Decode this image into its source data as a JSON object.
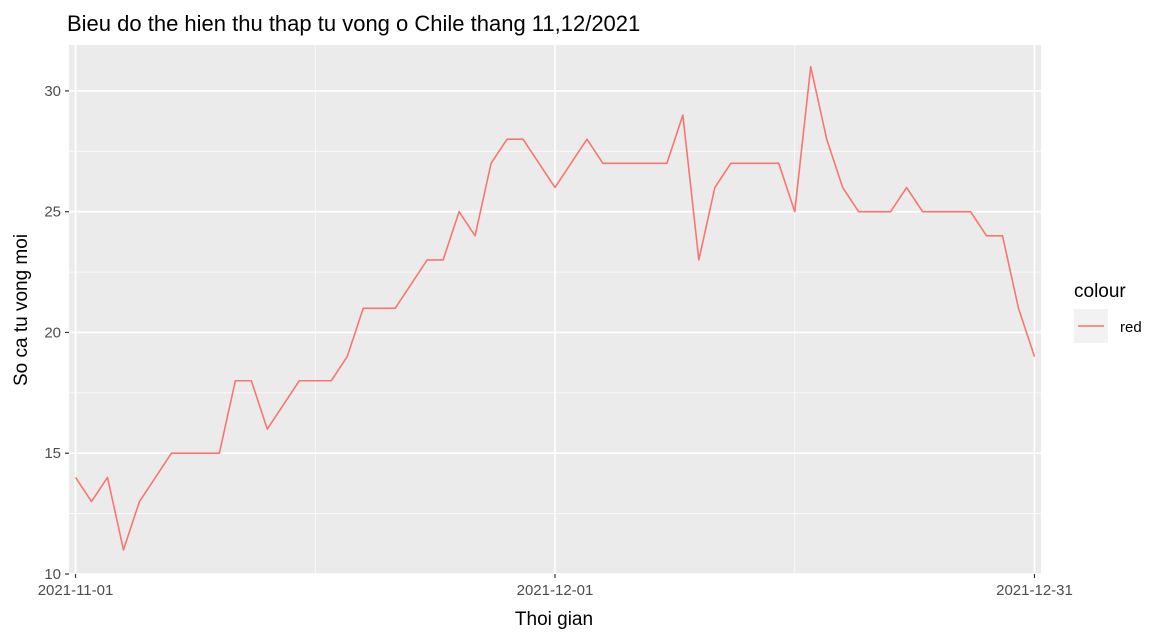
{
  "chart_data": {
    "type": "line",
    "title": "Bieu do the hien thu thap tu vong o Chile thang 11,12/2021",
    "xlabel": "Thoi gian",
    "ylabel": "So ca tu vong moi",
    "x_ticks": [
      "2021-11-01",
      "2021-12-01",
      "2021-12-31"
    ],
    "y_ticks": [
      10,
      15,
      20,
      25,
      30
    ],
    "xlim": [
      "2021-11-01",
      "2021-12-31"
    ],
    "ylim": [
      10,
      31.9
    ],
    "grid": true,
    "legend": {
      "title": "colour",
      "position": "right",
      "entries": [
        "red"
      ]
    },
    "series": [
      {
        "name": "red",
        "color": "#F8766D",
        "x": [
          "2021-11-01",
          "2021-11-02",
          "2021-11-03",
          "2021-11-04",
          "2021-11-05",
          "2021-11-06",
          "2021-11-07",
          "2021-11-08",
          "2021-11-09",
          "2021-11-10",
          "2021-11-11",
          "2021-11-12",
          "2021-11-13",
          "2021-11-14",
          "2021-11-15",
          "2021-11-16",
          "2021-11-17",
          "2021-11-18",
          "2021-11-19",
          "2021-11-20",
          "2021-11-21",
          "2021-11-22",
          "2021-11-23",
          "2021-11-24",
          "2021-11-25",
          "2021-11-26",
          "2021-11-27",
          "2021-11-28",
          "2021-11-29",
          "2021-11-30",
          "2021-12-01",
          "2021-12-02",
          "2021-12-03",
          "2021-12-04",
          "2021-12-05",
          "2021-12-06",
          "2021-12-07",
          "2021-12-08",
          "2021-12-09",
          "2021-12-10",
          "2021-12-11",
          "2021-12-12",
          "2021-12-13",
          "2021-12-14",
          "2021-12-15",
          "2021-12-16",
          "2021-12-17",
          "2021-12-18",
          "2021-12-19",
          "2021-12-20",
          "2021-12-21",
          "2021-12-22",
          "2021-12-23",
          "2021-12-24",
          "2021-12-25",
          "2021-12-26",
          "2021-12-27",
          "2021-12-28",
          "2021-12-29",
          "2021-12-30",
          "2021-12-31"
        ],
        "y": [
          14,
          13,
          14,
          11,
          13,
          14,
          15,
          15,
          15,
          15,
          18,
          18,
          16,
          17,
          18,
          18,
          18,
          19,
          21,
          21,
          21,
          22,
          23,
          23,
          25,
          24,
          27,
          28,
          28,
          27,
          26,
          27,
          28,
          27,
          27,
          27,
          27,
          27,
          29,
          23,
          26,
          27,
          27,
          27,
          27,
          25,
          31,
          28,
          26,
          25,
          25,
          25,
          26,
          25,
          25,
          25,
          25,
          24,
          24,
          21,
          19
        ]
      }
    ]
  }
}
